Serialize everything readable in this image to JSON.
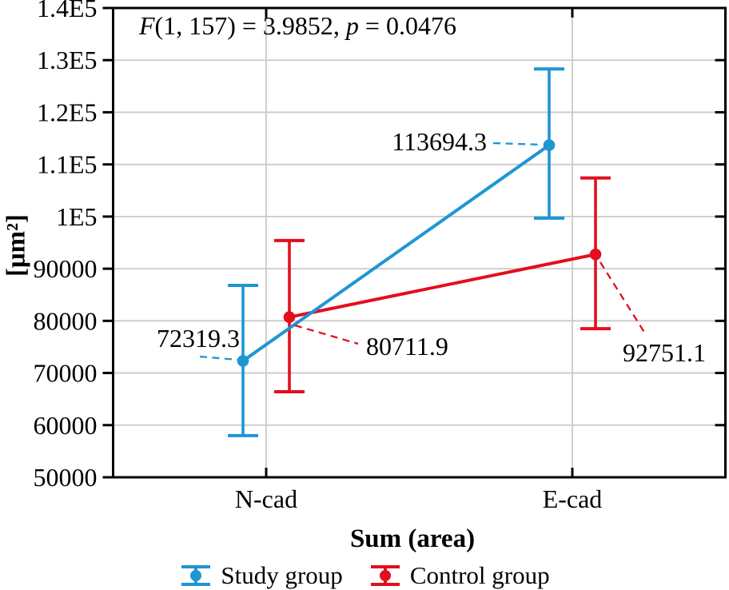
{
  "page": {
    "background": "#FFFFFF"
  },
  "chart_data": {
    "type": "line",
    "subtype": "means-plot-with-error-bars",
    "title": "",
    "xlabel": "Sum (area)",
    "ylabel": "[μm²]",
    "categories": [
      "N-cad",
      "E-cad"
    ],
    "y_axis": {
      "min": 50000,
      "max": 140000,
      "step": 10000,
      "tick_labels_top_to_bottom": [
        "1.4E5",
        "1.3E5",
        "1.2E5",
        "1.1E5",
        "1E5",
        "90000",
        "80000",
        "70000",
        "60000",
        "50000"
      ]
    },
    "grid": true,
    "legend_position": "bottom",
    "annotation": {
      "text": "F(1, 157) = 3.9852, p = 0.0476",
      "parts": [
        "F",
        "(1, 157) = 3.9852, ",
        "p",
        " = 0.0476"
      ]
    },
    "series": [
      {
        "name": "Study group",
        "color": "#1E96D2",
        "values": [
          72319.3,
          113694.3
        ],
        "value_labels": [
          "72319.3",
          "113694.3"
        ],
        "error_low": [
          58000,
          99700
        ],
        "error_high": [
          86800,
          128300
        ]
      },
      {
        "name": "Control group",
        "color": "#E30E1E",
        "values": [
          80711.9,
          92751.1
        ],
        "value_labels": [
          "80711.9",
          "92751.1"
        ],
        "error_low": [
          66400,
          78500
        ],
        "error_high": [
          95400,
          107400
        ]
      }
    ],
    "colors": {
      "grid": "#CACACA",
      "frame": "#000000",
      "text": "#000000"
    }
  }
}
